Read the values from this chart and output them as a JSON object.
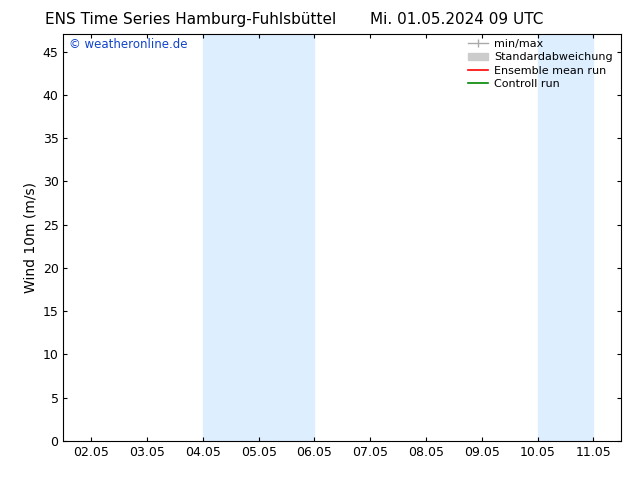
{
  "title_left": "ENS Time Series Hamburg-Fuhlsbüttel",
  "title_right": "Mi. 01.05.2024 09 UTC",
  "ylabel": "Wind 10m (m/s)",
  "ylim": [
    0,
    47
  ],
  "yticks": [
    0,
    5,
    10,
    15,
    20,
    25,
    30,
    35,
    40,
    45
  ],
  "xtick_labels": [
    "02.05",
    "03.05",
    "04.05",
    "05.05",
    "06.05",
    "07.05",
    "08.05",
    "09.05",
    "10.05",
    "11.05"
  ],
  "xtick_positions": [
    0,
    1,
    2,
    3,
    4,
    5,
    6,
    7,
    8,
    9
  ],
  "shade_bands": [
    {
      "x_start": 2.0,
      "x_end": 4.0
    },
    {
      "x_start": 8.0,
      "x_end": 9.0
    }
  ],
  "shade_color": "#ddeeff",
  "bg_color": "#ffffff",
  "copyright_text": "© weatheronline.de",
  "copyright_color": "#1144cc",
  "legend_labels": [
    "min/max",
    "Standardabweichung",
    "Ensemble mean run",
    "Controll run"
  ],
  "legend_colors": [
    "#aaaaaa",
    "#cccccc",
    "#ff0000",
    "#008800"
  ],
  "title_fontsize": 11,
  "axis_label_fontsize": 10,
  "tick_fontsize": 9,
  "legend_fontsize": 8
}
